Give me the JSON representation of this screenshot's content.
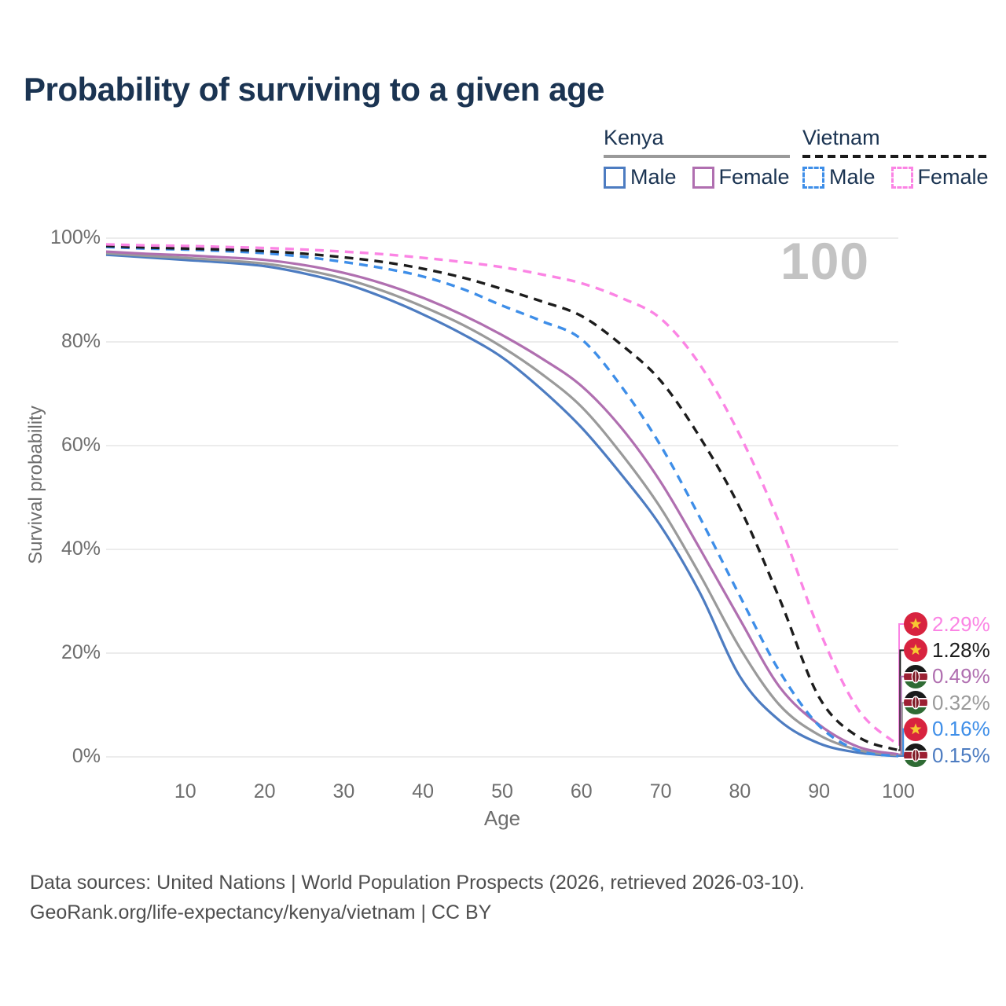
{
  "title": "Probability of surviving to a given age",
  "watermark": "100",
  "colors": {
    "title_text": "#1b3452",
    "tick_text": "#6e6e6e",
    "gridline": "#ececec",
    "watermark": "#c3c3c3",
    "footer_text": "#4e4e4e",
    "kenya_male": "#4d7cc1",
    "kenya_female": "#b06fb0",
    "kenya_total": "#9a9a9a",
    "vietnam_male": "#3e8ee8",
    "vietnam_female": "#fb84e4",
    "vietnam_total": "#1c1c1c",
    "vietnam_flag_red": "#d8233f",
    "vietnam_flag_star": "#f7c832",
    "kenya_flag_black": "#1a1a1a",
    "kenya_flag_red": "#9c2033",
    "kenya_flag_green": "#2f6b34"
  },
  "legend": {
    "groups": [
      {
        "country": "Kenya",
        "underline_style": "solid",
        "underline_color": "#9a9a9a",
        "items": [
          {
            "label": "Male",
            "color": "#4d7cc1",
            "dashed": false
          },
          {
            "label": "Female",
            "color": "#b06fb0",
            "dashed": false
          }
        ]
      },
      {
        "country": "Vietnam",
        "underline_style": "dashed",
        "underline_color": "#1a1a1a",
        "items": [
          {
            "label": "Male",
            "color": "#3e8ee8",
            "dashed": true
          },
          {
            "label": "Female",
            "color": "#fb84e4",
            "dashed": true
          }
        ]
      }
    ]
  },
  "chart_data": {
    "type": "line",
    "title": "Probability of surviving to a given age",
    "xlabel": "Age",
    "ylabel": "Survival probability",
    "xlim": [
      0,
      100
    ],
    "ylim": [
      0,
      100
    ],
    "x_ticks": [
      10,
      20,
      30,
      40,
      50,
      60,
      70,
      80,
      90,
      100
    ],
    "y_ticks": [
      0,
      20,
      40,
      60,
      80,
      100
    ],
    "y_tick_labels": [
      "0%",
      "20%",
      "40%",
      "60%",
      "80%",
      "100%"
    ],
    "grid": "horizontal",
    "legend_position": "top-right",
    "hovered_age": 100,
    "x": [
      0,
      5,
      10,
      15,
      20,
      25,
      30,
      35,
      40,
      45,
      50,
      55,
      60,
      65,
      70,
      75,
      80,
      85,
      90,
      95,
      100
    ],
    "series": [
      {
        "name": "Kenya Male",
        "country": "kenya",
        "sex": "male",
        "color": "#4d7cc1",
        "dashed": false,
        "end_label": "0.15%",
        "label_color": "#4d7cc1",
        "values": [
          96.8,
          96.3,
          95.8,
          95.3,
          94.6,
          93.2,
          91.3,
          88.6,
          85.3,
          81.5,
          77.0,
          70.8,
          63.5,
          54.5,
          44.5,
          31.5,
          15.5,
          7.0,
          2.6,
          0.8,
          0.15
        ]
      },
      {
        "name": "Kenya",
        "country": "kenya",
        "sex": "total",
        "color": "#9a9a9a",
        "dashed": false,
        "end_label": "0.32%",
        "label_color": "#9a9a9a",
        "values": [
          97.1,
          96.6,
          96.2,
          95.7,
          95.1,
          93.9,
          92.2,
          89.8,
          86.8,
          83.3,
          79.0,
          73.8,
          67.5,
          58.5,
          48.0,
          35.0,
          21.0,
          10.0,
          4.2,
          1.3,
          0.32
        ]
      },
      {
        "name": "Kenya Female",
        "country": "kenya",
        "sex": "female",
        "color": "#b06fb0",
        "dashed": false,
        "end_label": "0.49%",
        "label_color": "#b06fb0",
        "values": [
          97.4,
          97.0,
          96.7,
          96.3,
          95.8,
          94.8,
          93.3,
          91.2,
          88.5,
          85.2,
          81.3,
          76.8,
          71.5,
          63.5,
          53.0,
          40.0,
          26.5,
          13.5,
          6.2,
          1.9,
          0.49
        ]
      },
      {
        "name": "Vietnam Male",
        "country": "vietnam",
        "sex": "male",
        "color": "#3e8ee8",
        "dashed": true,
        "end_label": "0.16%",
        "label_color": "#3e8ee8",
        "values": [
          98.3,
          98.0,
          97.8,
          97.5,
          97.1,
          96.4,
          95.4,
          94.2,
          92.6,
          90.2,
          87.0,
          84.0,
          80.5,
          71.5,
          60.0,
          46.0,
          31.0,
          16.5,
          6.0,
          1.2,
          0.16
        ]
      },
      {
        "name": "Vietnam",
        "country": "vietnam",
        "sex": "total",
        "color": "#1c1c1c",
        "dashed": true,
        "end_label": "1.28%",
        "label_color": "#1c1c1c",
        "values": [
          98.5,
          98.2,
          98.0,
          97.8,
          97.5,
          97.0,
          96.3,
          95.4,
          94.1,
          92.4,
          90.2,
          87.8,
          85.0,
          79.5,
          72.5,
          61.5,
          48.0,
          30.5,
          11.5,
          3.8,
          1.28
        ]
      },
      {
        "name": "Vietnam Female",
        "country": "vietnam",
        "sex": "female",
        "color": "#fb84e4",
        "dashed": true,
        "end_label": "2.29%",
        "label_color": "#fb84e4",
        "values": [
          98.8,
          98.6,
          98.5,
          98.3,
          98.1,
          97.8,
          97.4,
          96.9,
          96.2,
          95.4,
          94.4,
          93.0,
          91.3,
          88.5,
          84.5,
          75.5,
          62.0,
          45.0,
          24.5,
          9.0,
          2.29
        ]
      }
    ]
  },
  "footer": {
    "line1": "Data sources: United Nations | World Population Prospects (2026, retrieved 2026-03-10).",
    "line2": "GeoRank.org/life-expectancy/kenya/vietnam | CC BY"
  }
}
